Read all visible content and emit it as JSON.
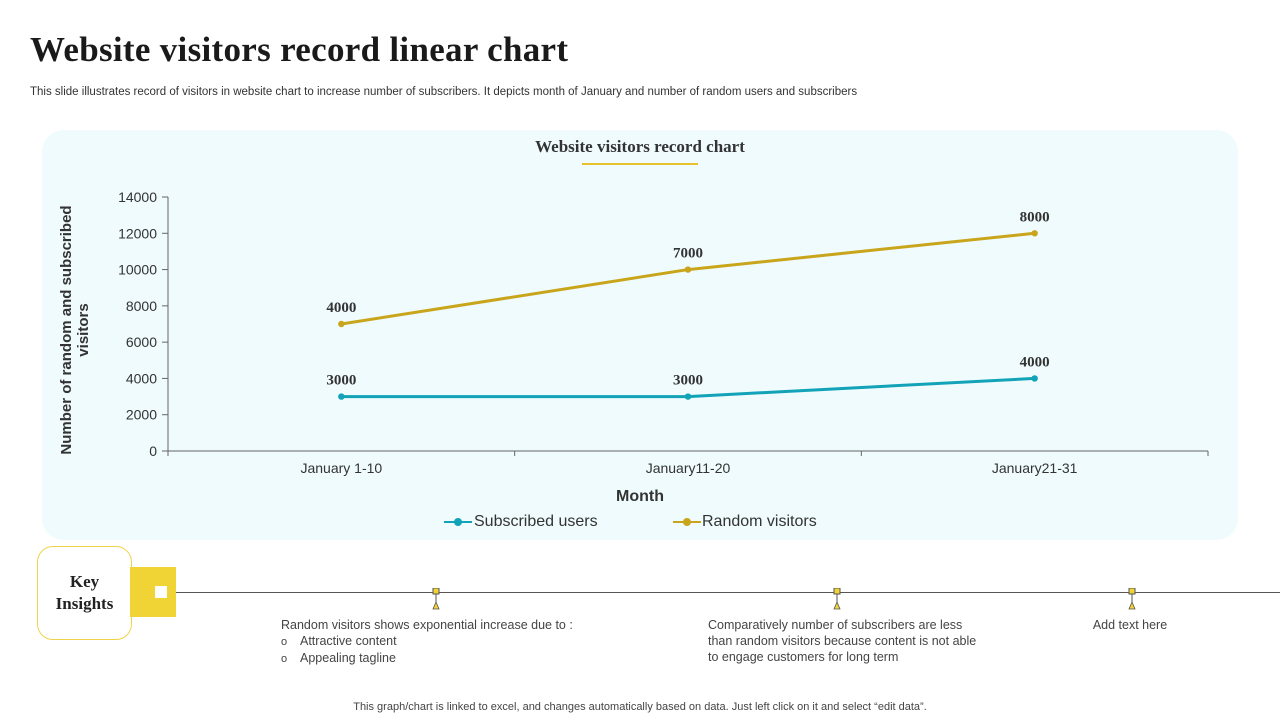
{
  "page": {
    "title": "Website visitors record linear chart",
    "subtitle": "This slide illustrates record of visitors in website chart to increase number of subscribers. It depicts month of January and number of random users and subscribers",
    "footer": "This graph/chart is linked to excel,  and changes automatically based on data. Just left click on it and select “edit data”."
  },
  "colors": {
    "subscribed": "#12a3b8",
    "random": "#c9a51c",
    "accent": "#f0d335",
    "panel": "#effbfd"
  },
  "chart_data": {
    "type": "line",
    "title": "Website visitors record chart",
    "xlabel": "Month",
    "ylabel": "Number  of random and subscribed visitors",
    "categories": [
      "January 1-10",
      "January11-20",
      "January21-31"
    ],
    "ylim": [
      0,
      14000
    ],
    "yticks": [
      0,
      2000,
      4000,
      6000,
      8000,
      10000,
      12000,
      14000
    ],
    "series": [
      {
        "name": "Subscribed users",
        "values": [
          3000,
          3000,
          4000
        ],
        "labels": [
          "3000",
          "3000",
          "4000"
        ]
      },
      {
        "name": "Random visitors",
        "values": [
          7000,
          10000,
          12000
        ],
        "labels": [
          "4000",
          "7000",
          "8000"
        ]
      }
    ],
    "legend_position": "bottom",
    "grid": false
  },
  "insights": {
    "heading": "Key Insights",
    "items": [
      {
        "text": "Random visitors shows exponential increase due to :",
        "bullets": [
          "Attractive content",
          "Appealing tagline"
        ]
      },
      {
        "text": "Comparatively  number of subscribers are less than random visitors because content is not able to engage  customers for long term"
      },
      {
        "text": "Add text here"
      }
    ]
  }
}
